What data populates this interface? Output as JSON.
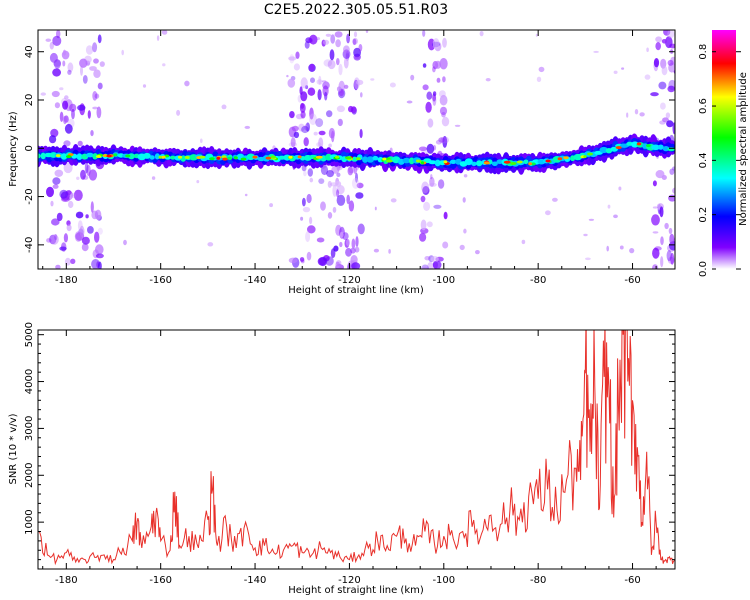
{
  "title": "C2E5.2022.305.05.51.R03",
  "chart_data": [
    {
      "type": "heatmap",
      "xlabel": "Height of straight line (km)",
      "ylabel": "Frequency (Hz)",
      "xlim": [
        -186,
        -51
      ],
      "ylim": [
        -50,
        49
      ],
      "xticks": [
        -180,
        -160,
        -140,
        -120,
        -100,
        -80,
        -60
      ],
      "yticks": [
        -40,
        -20,
        0,
        20,
        40
      ],
      "echo_band": [
        {
          "x": -186,
          "freq": -3
        },
        {
          "x": -170,
          "freq": -3
        },
        {
          "x": -150,
          "freq": -4
        },
        {
          "x": -130,
          "freq": -4
        },
        {
          "x": -120,
          "freq": -4
        },
        {
          "x": -110,
          "freq": -5
        },
        {
          "x": -100,
          "freq": -6
        },
        {
          "x": -90,
          "freq": -6
        },
        {
          "x": -80,
          "freq": -6
        },
        {
          "x": -70,
          "freq": -3
        },
        {
          "x": -60,
          "freq": 2
        },
        {
          "x": -53,
          "freq": 0
        }
      ],
      "noise_columns_x": [
        -181,
        -175,
        -130,
        -124,
        -120,
        -102,
        -53
      ],
      "colorbar": {
        "label": "Normalized spectral amplitude",
        "range": [
          0,
          0.88
        ],
        "ticks": [
          "0.0",
          "0.2",
          "0.4",
          "0.6",
          "0.8"
        ],
        "tick_values": [
          0.0,
          0.2,
          0.4,
          0.6,
          0.8
        ],
        "colors": [
          "#ffffff",
          "#8000ff",
          "#0000ff",
          "#00ffff",
          "#00ff00",
          "#ffff00",
          "#ff0000",
          "#ff00ff"
        ]
      }
    },
    {
      "type": "line",
      "xlabel": "Height of straight line (km)",
      "ylabel": "SNR (10 * v/v)",
      "xlim": [
        -186,
        -51
      ],
      "ylim": [
        0,
        5100
      ],
      "xticks": [
        -180,
        -160,
        -140,
        -120,
        -100,
        -80,
        -60
      ],
      "yticks": [
        1000,
        2000,
        3000,
        4000,
        5000
      ],
      "color": "#e8302a",
      "series": [
        {
          "name": "SNR",
          "x": [
            -186,
            -184,
            -182,
            -180,
            -178,
            -176,
            -174,
            -172,
            -170,
            -168,
            -166,
            -165,
            -164,
            -162,
            -161,
            -160,
            -158,
            -157,
            -156,
            -154,
            -152,
            -150,
            -149,
            -148,
            -146,
            -144,
            -142,
            -140,
            -138,
            -136,
            -134,
            -132,
            -130,
            -128,
            -126,
            -124,
            -122,
            -120,
            -118,
            -116,
            -114,
            -112,
            -110,
            -108,
            -106,
            -104,
            -102,
            -100,
            -98,
            -96,
            -94,
            -92,
            -90,
            -88,
            -86,
            -84,
            -82,
            -80,
            -78,
            -76,
            -74,
            -72,
            -71,
            -70,
            -69,
            -68,
            -67,
            -66,
            -65,
            -64,
            -63,
            -62,
            -61,
            -60,
            -59,
            -58,
            -57,
            -56,
            -55,
            -54,
            -53,
            -52,
            -51
          ],
          "values": [
            800,
            300,
            200,
            350,
            150,
            200,
            250,
            300,
            200,
            450,
            600,
            1000,
            450,
            900,
            1200,
            600,
            400,
            1650,
            500,
            700,
            450,
            1050,
            1700,
            500,
            900,
            450,
            1000,
            450,
            500,
            350,
            400,
            500,
            350,
            300,
            450,
            350,
            250,
            200,
            300,
            450,
            600,
            500,
            700,
            650,
            500,
            800,
            550,
            700,
            650,
            800,
            900,
            750,
            1150,
            950,
            1250,
            1050,
            1550,
            1500,
            1700,
            1250,
            1900,
            2150,
            1900,
            4200,
            2500,
            3900,
            1300,
            4100,
            3900,
            1100,
            3500,
            5000,
            4000,
            3600,
            2600,
            1000,
            2500,
            300,
            1000,
            200,
            200,
            200,
            200
          ]
        }
      ]
    }
  ]
}
